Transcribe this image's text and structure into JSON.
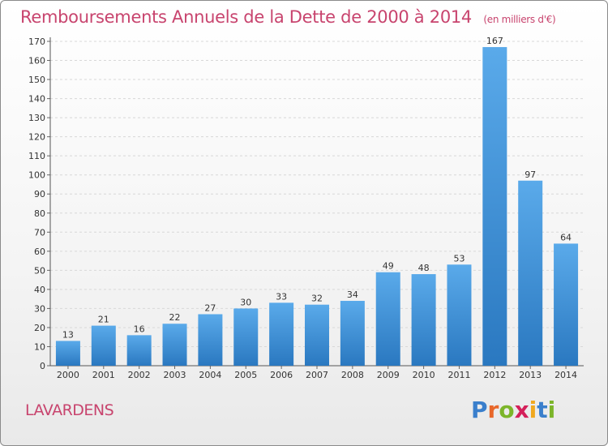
{
  "title": {
    "main": "Remboursements Annuels de la Dette de 2000 à 2014",
    "unit": "(en milliers d'€)"
  },
  "commune": "LAVARDENS",
  "logo": {
    "letters": [
      "P",
      "r",
      "o",
      "x",
      "i",
      "t",
      "i"
    ]
  },
  "colors": {
    "title": "#c8446e",
    "bar_top": "#5aaaea",
    "bar_bottom": "#2a78c0",
    "grid": "#d8d8d8"
  },
  "chart_data": {
    "type": "bar",
    "title": "Remboursements Annuels de la Dette de 2000 à 2014",
    "ylabel": "(en milliers d'€)",
    "xlabel": "",
    "categories": [
      "2000",
      "2001",
      "2002",
      "2003",
      "2004",
      "2005",
      "2006",
      "2007",
      "2008",
      "2009",
      "2010",
      "2011",
      "2012",
      "2013",
      "2014"
    ],
    "values": [
      13,
      21,
      16,
      22,
      27,
      30,
      33,
      32,
      34,
      49,
      48,
      53,
      167,
      97,
      64
    ],
    "ylim": [
      0,
      170
    ],
    "ytick_step": 10,
    "grid": true
  }
}
